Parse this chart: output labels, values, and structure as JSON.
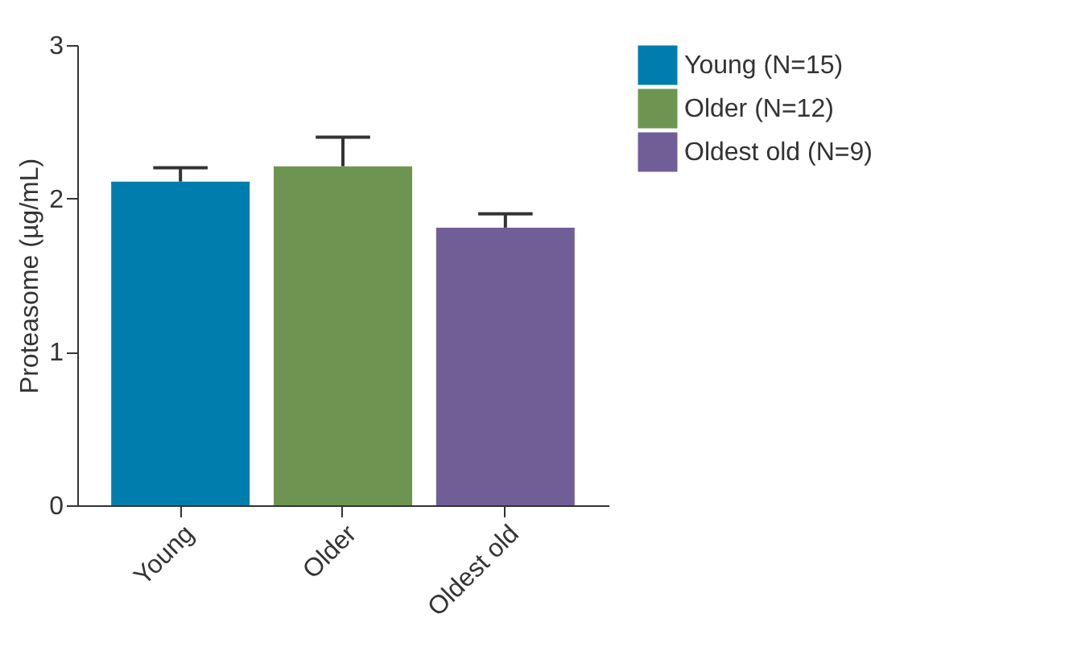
{
  "chart_data": {
    "type": "bar",
    "ylabel": "Proteasome (µg/mL)",
    "categories": [
      "Young",
      "Older",
      "Oldest old"
    ],
    "series": [
      {
        "name": "Young (N=15)",
        "color": "#007dac",
        "values": [
          2.11,
          null,
          null
        ],
        "errors": [
          [
            2.11,
            2.2
          ],
          null,
          null
        ]
      },
      {
        "name": "Older (N=12)",
        "color": "#6e9452",
        "values": [
          null,
          2.21,
          null
        ],
        "errors": [
          null,
          [
            2.21,
            2.4
          ],
          null
        ]
      },
      {
        "name": "Oldest old (N=9)",
        "color": "#705e97",
        "values": [
          null,
          null,
          1.81
        ],
        "errors": [
          null,
          null,
          [
            1.81,
            1.9
          ]
        ]
      }
    ],
    "ylim": [
      0,
      3
    ],
    "yticks": [
      0,
      1,
      2,
      3
    ],
    "grid": false,
    "legend": "top right"
  }
}
